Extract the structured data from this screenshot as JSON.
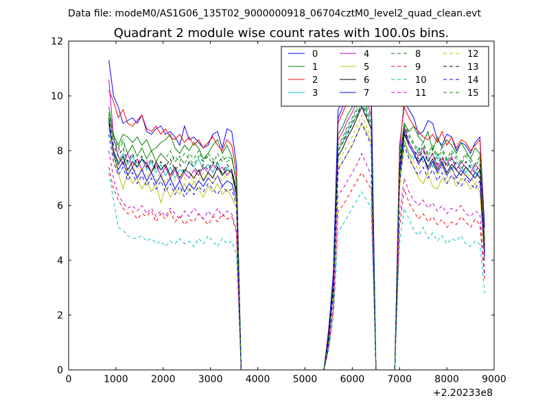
{
  "suptitle": "Data file: modeM0/AS1G06_135T02_9000000918_06704cztM0_level2_quad_clean.evt",
  "offset_label": "+2.20233e8",
  "colors": [
    "#0000ff",
    "#008000",
    "#ff0000",
    "#00bfbf",
    "#bf00bf",
    "#bfbf00",
    "#000000",
    "#0000ff",
    "#008000",
    "#ff0000",
    "#00bfbf",
    "#bf00bf",
    "#bfbf00",
    "#000000",
    "#0000ff",
    "#008000"
  ],
  "chart_data": {
    "type": "line",
    "title": "Quadrant 2 module wise count rates with 100.0s bins.",
    "xlabel": "",
    "ylabel": "",
    "xlim": [
      0,
      9000
    ],
    "ylim": [
      0,
      12
    ],
    "x_ticks": [
      0,
      1000,
      2000,
      3000,
      4000,
      5000,
      6000,
      7000,
      8000,
      9000
    ],
    "y_ticks": [
      0,
      2,
      4,
      6,
      8,
      10,
      12
    ],
    "x_offset": "+2.20233e8",
    "grid": false,
    "legend": {
      "placement": "top-right",
      "columns": 4
    },
    "segments": [
      {
        "start": 850,
        "end": 3600,
        "step": 100
      },
      {
        "start": 5500,
        "end": 6450,
        "step": 100
      },
      {
        "start": 7000,
        "end": 8800,
        "step": 100
      }
    ],
    "series": [
      {
        "name": "0",
        "style": "solid",
        "seg": [
          [
            11.3,
            10,
            9.6,
            9,
            9.1,
            9.2,
            9.0,
            9.3,
            8.7,
            8.6,
            8.8,
            8.9,
            8.6,
            8.7,
            8.5,
            8.2,
            8.9,
            8.4,
            8.5,
            8.3,
            8.1,
            8.2,
            8.6,
            8.7,
            8.1,
            8.8,
            8.7,
            7.5
          ],
          [
            1.5,
            3.5,
            9.2,
            9.6,
            10.0,
            10.5,
            11.0,
            11.5,
            11.0,
            10.2
          ],
          [
            8.0,
            9.8,
            9.5,
            9.2,
            8.6,
            8.7,
            9.1,
            9.0,
            8.4,
            8.2,
            8.6,
            8.5,
            8.0,
            8.3,
            8.2,
            7.9,
            8.3,
            8.5,
            5.2
          ]
        ]
      },
      {
        "name": "1",
        "style": "solid",
        "seg": [
          [
            9.6,
            8.6,
            8.2,
            8.6,
            8.5,
            8.3,
            8.5,
            8.2,
            8.4,
            8.0,
            8.1,
            8.3,
            8.4,
            8.6,
            8.1,
            7.9,
            8.2,
            8.0,
            8.3,
            8.1,
            7.7,
            7.9,
            8.2,
            8.4,
            7.9,
            8.2,
            7.8,
            6.8
          ],
          [
            1.2,
            3.2,
            8.6,
            8.9,
            9.3,
            9.6,
            10.0,
            10.4,
            10.0,
            9.6
          ],
          [
            7.8,
            9.0,
            8.7,
            8.9,
            8.5,
            8.3,
            8.7,
            8.0,
            8.5,
            8.1,
            8.4,
            8.2,
            7.9,
            8.3,
            8.0,
            7.7,
            8.1,
            7.9,
            4.8
          ]
        ]
      },
      {
        "name": "2",
        "style": "solid",
        "seg": [
          [
            10.2,
            9.8,
            9.2,
            9.5,
            9.0,
            8.9,
            9.1,
            9.3,
            8.8,
            8.7,
            8.9,
            8.6,
            8.8,
            8.5,
            8.4,
            8.6,
            8.3,
            8.5,
            8.2,
            8.4,
            8.1,
            8.3,
            8.5,
            8.2,
            8.0,
            8.4,
            8.2,
            7.2
          ],
          [
            1.4,
            3.4,
            9.0,
            9.4,
            9.8,
            10.3,
            10.8,
            11.3,
            10.8,
            10.0
          ],
          [
            8.2,
            9.6,
            9.2,
            8.9,
            8.7,
            8.5,
            8.4,
            8.6,
            8.3,
            8.7,
            8.2,
            8.5,
            8.1,
            8.4,
            8.3,
            8.0,
            8.2,
            8.4,
            4.6
          ]
        ]
      },
      {
        "name": "3",
        "style": "solid",
        "seg": [
          [
            8.8,
            8.0,
            7.6,
            7.9,
            7.5,
            7.8,
            7.4,
            7.7,
            7.3,
            7.6,
            7.2,
            7.5,
            7.1,
            7.4,
            7.0,
            7.3,
            7.2,
            7.6,
            7.4,
            7.7,
            7.3,
            7.5,
            7.2,
            7.6,
            7.1,
            7.4,
            7.2,
            6.5
          ],
          [
            1.1,
            3.0,
            8.0,
            8.3,
            8.7,
            9.0,
            9.3,
            9.8,
            9.4,
            9.0
          ],
          [
            7.0,
            8.4,
            7.9,
            7.7,
            8.1,
            7.6,
            7.8,
            7.4,
            7.9,
            7.5,
            7.7,
            7.3,
            7.6,
            7.4,
            7.2,
            7.5,
            7.3,
            7.0,
            4.2
          ]
        ]
      },
      {
        "name": "4",
        "style": "solid",
        "seg": [
          [
            10.6,
            8.5,
            7.8,
            7.5,
            7.9,
            7.4,
            7.7,
            7.3,
            7.6,
            7.2,
            7.5,
            7.1,
            7.4,
            7.0,
            7.3,
            6.9,
            7.2,
            7.0,
            7.3,
            7.1,
            7.4,
            7.2,
            7.5,
            7.3,
            7.4,
            7.1,
            7.3,
            6.6
          ],
          [
            1.2,
            3.3,
            8.4,
            8.7,
            9.1,
            9.4,
            9.8,
            10.2,
            9.8,
            9.3
          ],
          [
            7.3,
            8.9,
            8.3,
            8.0,
            7.8,
            8.1,
            7.6,
            7.9,
            7.4,
            7.7,
            7.5,
            7.8,
            7.3,
            7.6,
            7.4,
            7.2,
            7.5,
            7.3,
            4.4
          ]
        ]
      },
      {
        "name": "5",
        "style": "solid",
        "seg": [
          [
            9.2,
            7.8,
            7.2,
            6.6,
            7.2,
            6.8,
            7.0,
            6.6,
            6.9,
            6.5,
            6.8,
            6.1,
            6.7,
            6.3,
            6.6,
            6.4,
            6.8,
            6.5,
            6.9,
            6.6,
            6.3,
            6.7,
            6.5,
            6.8,
            6.4,
            6.6,
            6.3,
            5.9
          ],
          [
            1.0,
            2.8,
            7.4,
            7.6,
            7.9,
            8.2,
            8.6,
            9.0,
            8.7,
            8.3
          ],
          [
            6.6,
            8.3,
            7.8,
            7.4,
            7.0,
            6.8,
            7.2,
            6.7,
            6.6,
            7.0,
            6.8,
            7.1,
            6.7,
            7.0,
            6.9,
            6.6,
            6.8,
            6.5,
            4.0
          ]
        ]
      },
      {
        "name": "6",
        "style": "solid",
        "seg": [
          [
            9.0,
            8.0,
            7.5,
            7.8,
            7.3,
            7.6,
            7.4,
            7.7,
            7.5,
            7.2,
            7.6,
            7.3,
            7.5,
            7.1,
            7.4,
            7.0,
            7.3,
            7.2,
            7.0,
            7.3,
            6.9,
            7.2,
            7.0,
            7.4,
            7.1,
            7.3,
            7.2,
            6.4
          ],
          [
            1.1,
            3.0,
            7.8,
            8.1,
            8.5,
            8.8,
            9.2,
            9.6,
            9.2,
            8.8
          ],
          [
            7.1,
            8.6,
            8.2,
            7.9,
            7.6,
            7.8,
            7.4,
            7.7,
            7.3,
            7.6,
            7.2,
            7.5,
            7.3,
            7.1,
            7.4,
            7.2,
            7.0,
            7.3,
            4.3
          ]
        ]
      },
      {
        "name": "7",
        "style": "solid",
        "seg": [
          [
            9.1,
            7.9,
            7.3,
            7.6,
            7.1,
            7.4,
            7.0,
            7.3,
            6.9,
            7.2,
            6.8,
            7.1,
            6.7,
            7.0,
            6.6,
            6.9,
            6.5,
            6.8,
            6.6,
            6.9,
            6.7,
            7.0,
            6.8,
            7.1,
            6.7,
            6.9,
            6.8,
            6.2
          ],
          [
            1.3,
            3.6,
            9.5,
            9.8,
            10.3,
            10.8,
            11.2,
            11.8,
            11.2,
            10.5
          ],
          [
            7.2,
            8.7,
            8.2,
            7.9,
            7.5,
            7.8,
            7.3,
            7.6,
            7.2,
            7.5,
            7.1,
            7.4,
            7.0,
            7.3,
            7.1,
            6.9,
            7.2,
            7.0,
            4.1
          ]
        ]
      },
      {
        "name": "8",
        "style": "dashed",
        "seg": [
          [
            9.3,
            8.4,
            8.0,
            8.3,
            7.9,
            8.2,
            7.8,
            8.1,
            7.7,
            8.0,
            7.6,
            7.9,
            7.7,
            8.0,
            7.6,
            7.8,
            7.5,
            7.9,
            7.7,
            8.0,
            7.6,
            7.8,
            7.5,
            7.9,
            7.6,
            7.8,
            7.7,
            6.9
          ],
          [
            1.1,
            3.1,
            8.1,
            8.4,
            8.8,
            9.1,
            9.5,
            9.9,
            9.5,
            9.1
          ],
          [
            7.6,
            8.9,
            8.5,
            8.2,
            7.9,
            8.2,
            7.8,
            8.1,
            7.7,
            8.0,
            7.6,
            7.9,
            7.7,
            7.5,
            7.8,
            7.6,
            7.4,
            7.7,
            4.5
          ]
        ]
      },
      {
        "name": "9",
        "style": "dashed",
        "seg": [
          [
            7.4,
            6.6,
            6.2,
            5.9,
            5.7,
            5.8,
            5.5,
            5.7,
            5.6,
            5.8,
            5.4,
            5.7,
            5.5,
            5.8,
            5.4,
            5.6,
            5.3,
            5.5,
            5.4,
            5.7,
            5.5,
            5.3,
            5.6,
            5.4,
            5.7,
            5.5,
            5.6,
            5.0
          ],
          [
            0.8,
            2.2,
            5.8,
            6.0,
            6.3,
            6.6,
            6.9,
            7.2,
            6.9,
            6.6
          ],
          [
            5.2,
            6.6,
            6.1,
            5.8,
            5.5,
            5.7,
            5.4,
            5.6,
            5.3,
            5.5,
            5.2,
            5.4,
            5.3,
            5.6,
            5.4,
            5.2,
            5.5,
            5.3,
            3.3
          ]
        ]
      },
      {
        "name": "10",
        "style": "dashed",
        "seg": [
          [
            7.2,
            6.2,
            5.2,
            5.1,
            4.9,
            4.8,
            4.8,
            4.9,
            4.7,
            4.8,
            4.6,
            4.7,
            4.5,
            4.7,
            4.6,
            4.8,
            4.6,
            4.7,
            4.5,
            4.8,
            4.6,
            4.9,
            4.7,
            4.5,
            4.8,
            4.6,
            4.7,
            4.2
          ],
          [
            0.7,
            1.9,
            5.0,
            5.3,
            5.6,
            5.9,
            6.2,
            6.5,
            6.2,
            5.9
          ],
          [
            4.6,
            5.9,
            5.5,
            5.1,
            4.9,
            5.2,
            4.8,
            5.0,
            4.7,
            4.9,
            4.6,
            4.8,
            4.7,
            4.9,
            4.6,
            4.5,
            4.7,
            4.6,
            2.8
          ]
        ]
      },
      {
        "name": "11",
        "style": "dashed",
        "seg": [
          [
            8.0,
            7.0,
            6.4,
            6.1,
            5.9,
            6.0,
            5.8,
            6.0,
            5.7,
            5.9,
            5.6,
            5.8,
            5.6,
            5.9,
            5.7,
            5.5,
            5.8,
            5.6,
            5.9,
            5.7,
            5.5,
            5.8,
            5.6,
            5.9,
            5.6,
            5.8,
            5.7,
            5.1
          ],
          [
            0.9,
            2.4,
            6.4,
            6.6,
            6.9,
            7.2,
            7.5,
            7.9,
            7.5,
            7.1
          ],
          [
            5.6,
            7.0,
            6.5,
            6.2,
            6.0,
            6.2,
            5.9,
            6.1,
            5.8,
            6.0,
            5.7,
            5.9,
            5.8,
            6.0,
            5.7,
            5.6,
            5.8,
            5.7,
            3.5
          ]
        ]
      },
      {
        "name": "12",
        "style": "dashed",
        "seg": [
          [
            8.9,
            7.8,
            7.4,
            7.7,
            7.2,
            7.5,
            7.1,
            7.4,
            7.0,
            7.3,
            6.9,
            7.2,
            6.8,
            7.1,
            6.9,
            7.2,
            7.0,
            6.8,
            7.1,
            6.9,
            7.2,
            7.0,
            6.8,
            7.1,
            6.9,
            7.2,
            7.0,
            6.3
          ],
          [
            1.0,
            2.9,
            7.6,
            7.9,
            8.2,
            8.5,
            8.9,
            9.3,
            8.9,
            8.5
          ],
          [
            7.0,
            8.4,
            7.9,
            7.6,
            7.3,
            7.6,
            7.2,
            7.5,
            7.1,
            7.4,
            7.0,
            7.3,
            7.1,
            6.9,
            7.2,
            7.0,
            6.8,
            7.1,
            4.2
          ]
        ]
      },
      {
        "name": "13",
        "style": "dashed",
        "seg": [
          [
            9.2,
            8.2,
            7.8,
            8.1,
            7.6,
            7.9,
            7.5,
            7.8,
            7.4,
            7.7,
            7.3,
            7.6,
            7.4,
            7.7,
            7.3,
            7.5,
            7.2,
            7.6,
            7.4,
            7.2,
            7.5,
            7.3,
            7.6,
            7.4,
            7.2,
            7.5,
            7.3,
            6.6
          ],
          [
            1.1,
            3.1,
            8.0,
            8.3,
            8.6,
            9.0,
            9.3,
            9.7,
            9.3,
            8.9
          ],
          [
            7.4,
            8.8,
            8.3,
            8.0,
            7.7,
            8.0,
            7.6,
            7.9,
            7.5,
            7.8,
            7.4,
            7.7,
            7.5,
            7.3,
            7.6,
            7.4,
            7.2,
            7.5,
            4.4
          ]
        ]
      },
      {
        "name": "14",
        "style": "dashed",
        "seg": [
          [
            8.6,
            7.6,
            7.1,
            7.4,
            6.9,
            7.2,
            6.8,
            7.1,
            6.7,
            7.0,
            6.6,
            6.9,
            6.5,
            6.8,
            6.4,
            6.7,
            6.3,
            6.6,
            6.4,
            6.7,
            6.5,
            6.8,
            6.6,
            6.4,
            6.7,
            6.5,
            6.6,
            6.0
          ],
          [
            1.0,
            2.8,
            7.3,
            7.6,
            7.9,
            8.2,
            8.6,
            9.0,
            8.6,
            8.2
          ],
          [
            6.8,
            8.2,
            7.7,
            7.4,
            7.1,
            7.4,
            7.0,
            7.3,
            6.9,
            7.2,
            6.8,
            7.1,
            6.9,
            6.7,
            7.0,
            6.8,
            6.6,
            6.9,
            4.0
          ]
        ]
      },
      {
        "name": "15",
        "style": "dashed",
        "seg": [
          [
            9.4,
            8.5,
            8.1,
            8.4,
            7.9,
            8.2,
            7.8,
            8.1,
            7.7,
            8.0,
            7.6,
            7.9,
            7.7,
            7.5,
            7.8,
            7.6,
            7.9,
            7.7,
            7.5,
            7.8,
            7.6,
            7.9,
            7.7,
            7.5,
            7.8,
            7.6,
            7.7,
            7.0
          ],
          [
            1.2,
            3.2,
            8.2,
            8.5,
            8.9,
            9.2,
            9.6,
            10.0,
            9.6,
            9.2
          ],
          [
            7.7,
            9.0,
            8.6,
            8.3,
            8.0,
            8.3,
            7.9,
            8.2,
            7.8,
            8.1,
            7.7,
            8.0,
            7.8,
            7.6,
            7.9,
            7.7,
            7.5,
            7.8,
            4.6
          ]
        ]
      }
    ]
  }
}
